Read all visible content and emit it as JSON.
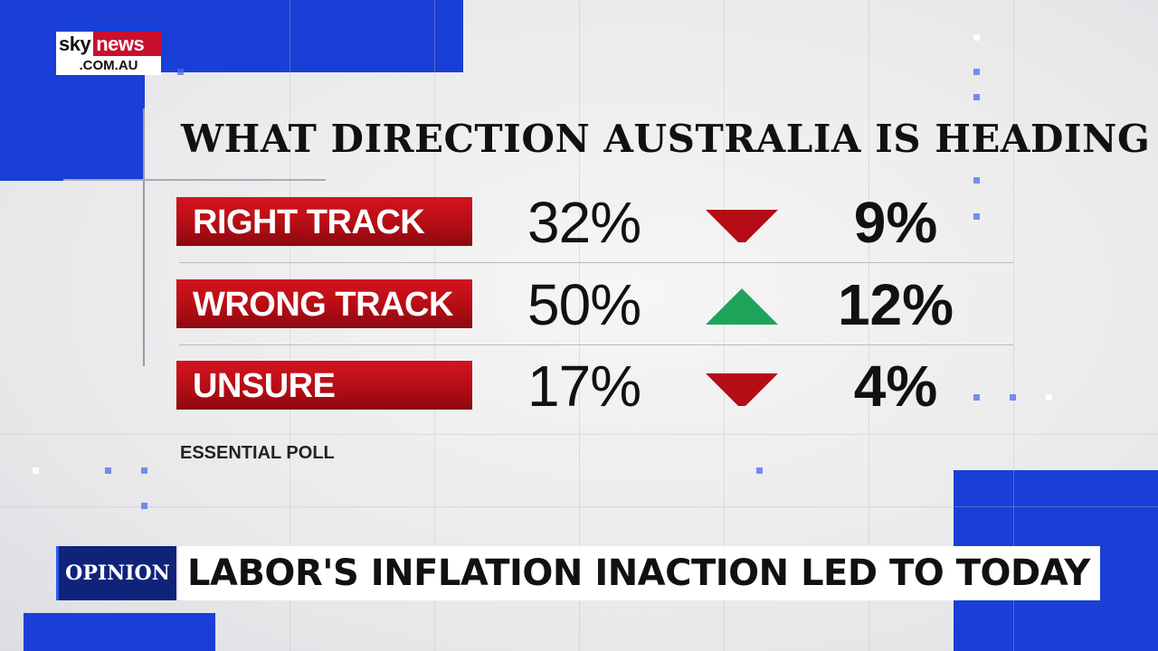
{
  "logo": {
    "brand": "sky",
    "name": "news",
    "domain": ".COM.AU"
  },
  "title": "WHAT DIRECTION AUSTRALIA IS HEADING",
  "rows": [
    {
      "label": "RIGHT TRACK",
      "value": "32%",
      "direction": "down",
      "change": "9%"
    },
    {
      "label": "WRONG TRACK",
      "value": "50%",
      "direction": "up",
      "change": "12%"
    },
    {
      "label": "UNSURE",
      "value": "17%",
      "direction": "down",
      "change": "4%"
    }
  ],
  "source": "ESSENTIAL POLL",
  "ticker": {
    "tag": "OPINION",
    "headline": "LABOR'S INFLATION INACTION LED TO TODAY"
  },
  "colors": {
    "label_red": "#c0101a",
    "arrow_down": "#b50d15",
    "arrow_up": "#1fa35a",
    "brand_blue": "#1a3fd6",
    "tag_navy": "#10237a"
  }
}
